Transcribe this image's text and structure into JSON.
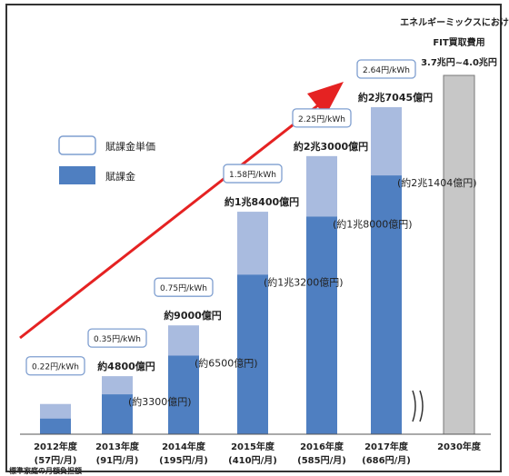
{
  "chart_data": {
    "type": "bar",
    "categories": [
      "2012年度",
      "2013年度",
      "2014年度",
      "2015年度",
      "2016年度",
      "2017年度",
      "2030年度"
    ],
    "household_burden": [
      "(57円/月)",
      "(91円/月)",
      "(195円/月)",
      "(410円/月)",
      "(585円/月)",
      "(686円/月)",
      ""
    ],
    "unit_price_labels": [
      "0.22円/kWh",
      "0.35円/kWh",
      "0.75円/kWh",
      "1.58円/kWh",
      "2.25円/kWh",
      "2.64円/kWh",
      ""
    ],
    "total_labels": [
      "",
      "約4800億円",
      "約9000億円",
      "約1兆8400億円",
      "約2兆3000億円",
      "約2兆7045億円",
      ""
    ],
    "levy_labels": [
      "",
      "(約3300億円)",
      "(約6500億円)",
      "(約1兆3200億円)",
      "(約1兆8000億円)",
      "(約2兆1404億円)",
      ""
    ],
    "series": [
      {
        "name": "賦課金",
        "values": [
          1300,
          3300,
          6500,
          13200,
          18000,
          21404,
          null
        ]
      },
      {
        "name": "賦課金単価",
        "values": [
          2500,
          4800,
          9000,
          18400,
          23000,
          27045,
          null
        ]
      }
    ],
    "y_unit": "億円",
    "ylim": [
      0,
      40000
    ],
    "fit_2030": {
      "title_line1": "エネルギーミックスにおける",
      "title_line2": "FIT買取費用",
      "range_label": "3.7兆円~4.0兆円",
      "value": 40000
    },
    "legend": {
      "unit_price": "賦課金単価",
      "levy": "賦課金",
      "placement": "top-left"
    },
    "footnote": "標準家庭の月額負担額",
    "colors": {
      "levy": "#4f7fc1",
      "unit_price_portion": "#a9bbdf",
      "fit_bar": "#c7c7c7",
      "arrow": "#e52222",
      "label_border": "#7f9fd0"
    },
    "axis_break": true,
    "grid": false
  }
}
